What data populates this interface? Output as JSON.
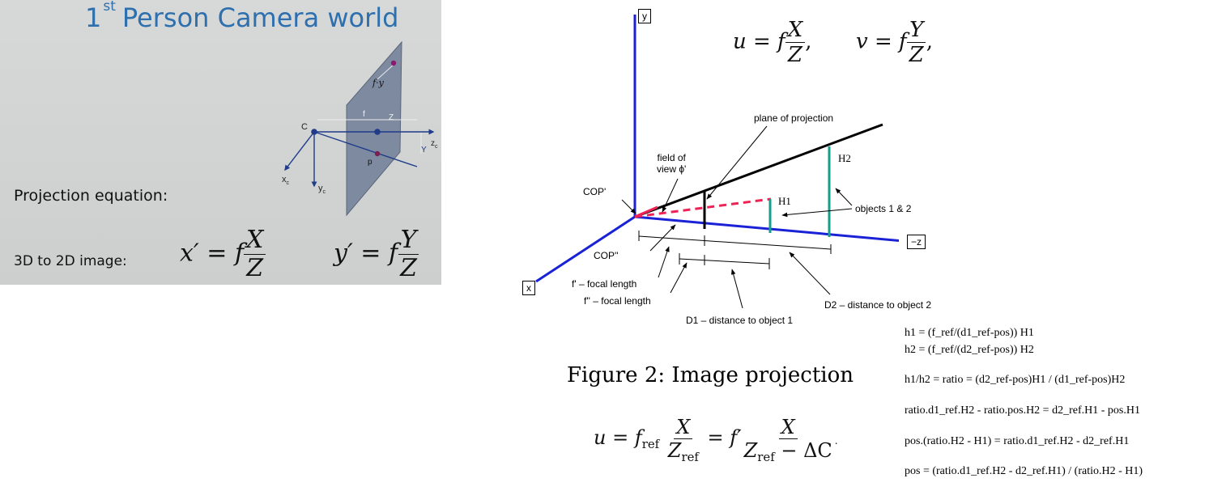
{
  "slide": {
    "title_ordinal": "1",
    "title_superscript": "st",
    "title_rest": "Person Camera world",
    "projection_label": "Projection equation:",
    "image_label": "3D to 2D image:",
    "eq1_lhs": "x′ = f",
    "eq2_lhs": "y′ = f",
    "eq1_num": "X",
    "eq2_num": "Y",
    "eq_den": "Z",
    "camera_labels": {
      "c": "C",
      "f": "f",
      "z": "Z",
      "y": "Y",
      "zc": "z",
      "zc_sub": "c",
      "xc": "x",
      "xc_sub": "c",
      "yc": "y",
      "yc_sub": "c",
      "p": "p",
      "fy": "f·y"
    }
  },
  "top_equation": {
    "u_lhs": "u = f",
    "u_num": "X",
    "u_den": "Z",
    "u_comma": ",",
    "v_lhs": "v = f",
    "v_num": "Y",
    "v_den": "Z",
    "v_comma": ","
  },
  "diagram": {
    "axis_y": "y",
    "axis_x": "x",
    "axis_z": "−z",
    "plane_of_projection": "plane of projection",
    "field_of_view_line1": "field of",
    "field_of_view_line2": "view ϕ'",
    "cop1": "COP'",
    "cop2": "COP''",
    "h1": "H1",
    "h2": "H2",
    "objects": "objects 1 & 2",
    "f1": "f' – focal length",
    "f2": "f'' – focal length",
    "d1": "D1 – distance to object 1",
    "d2": "D2 – distance to object 2"
  },
  "caption": "Figure 2: Image projection",
  "bottom_equation": {
    "lhs": "u = f",
    "lhs_sub": "ref",
    "num1": "X",
    "den1": "Z",
    "den1_sub": "ref",
    "mid": "= f′",
    "num2": "X",
    "den2": "Z",
    "den2_sub": "ref",
    "den2_tail": " − ΔC",
    "dot": "."
  },
  "derivation": [
    "h1 = (f_ref/(d1_ref-pos)) H1",
    "h2 = (f_ref/(d2_ref-pos)) H2",
    "h1/h2 = ratio = (d2_ref-pos)H1 / (d1_ref-pos)H2",
    "ratio.d1_ref.H2 - ratio.pos.H2 = d2_ref.H1 - pos.H1",
    "pos.(ratio.H2 - H1) = ratio.d1_ref.H2 -  d2_ref.H1",
    "pos = (ratio.d1_ref.H2 -  d2_ref.H1) / (ratio.H2 - H1)"
  ]
}
